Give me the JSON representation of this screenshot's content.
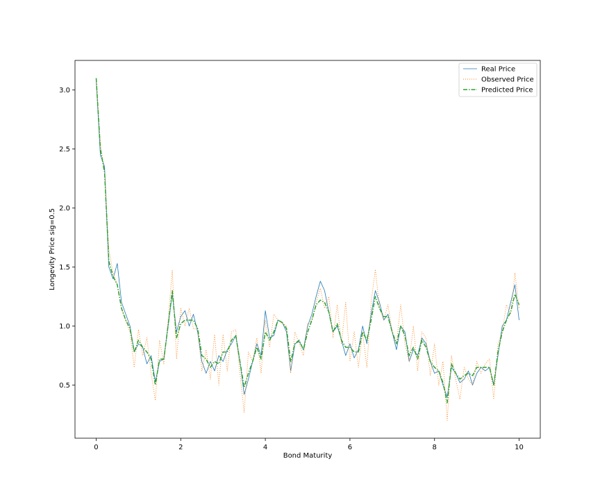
{
  "chart_data": {
    "type": "line",
    "xlabel": "Bond Maturity",
    "ylabel": "Longevity Price sig=0.5",
    "xlim": [
      -0.5,
      10.5
    ],
    "ylim": [
      0.05,
      3.25
    ],
    "xticks": [
      0,
      2,
      4,
      6,
      8,
      10
    ],
    "yticks": [
      0.5,
      1.0,
      1.5,
      2.0,
      2.5,
      3.0
    ],
    "xtick_labels": [
      "0",
      "2",
      "4",
      "6",
      "8",
      "10"
    ],
    "ytick_labels": [
      "0.5",
      "1.0",
      "1.5",
      "2.0",
      "2.5",
      "3.0"
    ],
    "grid": false,
    "legend_position": "top-right",
    "series": [
      {
        "name": "Real Price",
        "color": "#1f77b4",
        "style": "solid",
        "x": [
          0,
          0.1,
          0.2,
          0.3,
          0.4,
          0.5,
          0.6,
          0.7,
          0.8,
          0.9,
          1.0,
          1.1,
          1.2,
          1.3,
          1.4,
          1.5,
          1.6,
          1.7,
          1.8,
          1.9,
          2.0,
          2.1,
          2.2,
          2.3,
          2.4,
          2.5,
          2.6,
          2.7,
          2.8,
          2.9,
          3.0,
          3.1,
          3.2,
          3.3,
          3.4,
          3.5,
          3.6,
          3.7,
          3.8,
          3.9,
          4.0,
          4.1,
          4.2,
          4.3,
          4.4,
          4.5,
          4.6,
          4.7,
          4.8,
          4.9,
          5.0,
          5.1,
          5.2,
          5.3,
          5.4,
          5.5,
          5.6,
          5.7,
          5.8,
          5.9,
          6.0,
          6.1,
          6.2,
          6.3,
          6.4,
          6.5,
          6.6,
          6.7,
          6.8,
          6.9,
          7.0,
          7.1,
          7.2,
          7.3,
          7.4,
          7.5,
          7.6,
          7.7,
          7.8,
          7.9,
          8.0,
          8.1,
          8.2,
          8.3,
          8.4,
          8.5,
          8.6,
          8.7,
          8.8,
          8.9,
          9.0,
          9.1,
          9.2,
          9.3,
          9.4,
          9.5,
          9.6,
          9.7,
          9.8,
          9.9,
          10.0
        ],
        "y": [
          3.09,
          2.45,
          2.35,
          1.5,
          1.4,
          1.53,
          1.2,
          1.1,
          1.0,
          0.78,
          0.85,
          0.82,
          0.68,
          0.75,
          0.53,
          0.7,
          0.72,
          1.0,
          1.27,
          0.95,
          1.08,
          1.13,
          1.0,
          1.1,
          0.95,
          0.7,
          0.6,
          0.7,
          0.62,
          0.75,
          0.7,
          0.8,
          0.85,
          0.92,
          0.7,
          0.42,
          0.55,
          0.7,
          0.85,
          0.75,
          1.13,
          0.9,
          0.92,
          1.05,
          1.03,
          0.95,
          0.62,
          0.85,
          0.87,
          0.8,
          1.0,
          1.1,
          1.25,
          1.38,
          1.3,
          1.12,
          0.95,
          1.0,
          0.88,
          0.75,
          0.85,
          0.73,
          0.8,
          1.0,
          0.85,
          1.1,
          1.3,
          1.2,
          1.05,
          1.1,
          0.95,
          0.8,
          1.0,
          0.95,
          0.7,
          0.8,
          0.75,
          0.9,
          0.85,
          0.7,
          0.6,
          0.62,
          0.5,
          0.4,
          0.65,
          0.6,
          0.52,
          0.55,
          0.62,
          0.5,
          0.6,
          0.65,
          0.62,
          0.65,
          0.5,
          0.75,
          1.0,
          1.05,
          1.2,
          1.35,
          1.05
        ]
      },
      {
        "name": "Observed Price",
        "color": "#ff7f0e",
        "style": "dotted",
        "x": [
          0,
          0.1,
          0.2,
          0.3,
          0.4,
          0.5,
          0.6,
          0.7,
          0.8,
          0.9,
          1.0,
          1.1,
          1.2,
          1.3,
          1.4,
          1.5,
          1.6,
          1.7,
          1.8,
          1.9,
          2.0,
          2.1,
          2.2,
          2.3,
          2.4,
          2.5,
          2.6,
          2.7,
          2.8,
          2.9,
          3.0,
          3.1,
          3.2,
          3.3,
          3.4,
          3.5,
          3.6,
          3.7,
          3.8,
          3.9,
          4.0,
          4.1,
          4.2,
          4.3,
          4.4,
          4.5,
          4.6,
          4.7,
          4.8,
          4.9,
          5.0,
          5.1,
          5.2,
          5.3,
          5.4,
          5.5,
          5.6,
          5.7,
          5.8,
          5.9,
          6.0,
          6.1,
          6.2,
          6.3,
          6.4,
          6.5,
          6.6,
          6.7,
          6.8,
          6.9,
          7.0,
          7.1,
          7.2,
          7.3,
          7.4,
          7.5,
          7.6,
          7.7,
          7.8,
          7.9,
          8.0,
          8.1,
          8.2,
          8.3,
          8.4,
          8.5,
          8.6,
          8.7,
          8.8,
          8.9,
          9.0,
          9.1,
          9.2,
          9.3,
          9.4,
          9.5,
          9.6,
          9.7,
          9.8,
          9.9,
          10.0
        ],
        "y": [
          3.1,
          2.55,
          2.3,
          1.65,
          1.45,
          1.35,
          1.15,
          1.05,
          0.95,
          0.65,
          0.97,
          0.75,
          0.9,
          0.6,
          0.37,
          0.88,
          0.68,
          1.05,
          1.47,
          0.72,
          1.15,
          1.0,
          1.15,
          0.98,
          0.97,
          0.62,
          0.8,
          0.55,
          0.93,
          0.5,
          0.93,
          0.62,
          0.95,
          0.97,
          0.6,
          0.27,
          0.78,
          0.7,
          0.9,
          0.6,
          1.05,
          0.82,
          1.1,
          1.05,
          1.02,
          1.0,
          0.6,
          0.95,
          0.85,
          0.75,
          1.02,
          1.05,
          1.2,
          1.32,
          1.15,
          1.25,
          0.9,
          1.18,
          0.85,
          1.2,
          0.7,
          0.95,
          0.65,
          0.95,
          0.65,
          1.2,
          1.48,
          1.15,
          1.05,
          1.18,
          0.95,
          0.85,
          1.18,
          0.85,
          0.7,
          1.0,
          0.62,
          0.95,
          0.9,
          0.58,
          0.85,
          0.5,
          0.7,
          0.2,
          0.75,
          0.55,
          0.38,
          0.65,
          0.55,
          0.5,
          0.7,
          0.6,
          0.68,
          0.72,
          0.38,
          0.85,
          0.95,
          1.18,
          1.1,
          1.45,
          1.15
        ]
      },
      {
        "name": "Predicted Price",
        "color": "#2ca02c",
        "style": "dashdot",
        "x": [
          0,
          0.1,
          0.2,
          0.3,
          0.4,
          0.5,
          0.6,
          0.7,
          0.8,
          0.9,
          1.0,
          1.1,
          1.2,
          1.3,
          1.4,
          1.5,
          1.6,
          1.7,
          1.8,
          1.9,
          2.0,
          2.1,
          2.2,
          2.3,
          2.4,
          2.5,
          2.6,
          2.7,
          2.8,
          2.9,
          3.0,
          3.1,
          3.2,
          3.3,
          3.4,
          3.5,
          3.6,
          3.7,
          3.8,
          3.9,
          4.0,
          4.1,
          4.2,
          4.3,
          4.4,
          4.5,
          4.6,
          4.7,
          4.8,
          4.9,
          5.0,
          5.1,
          5.2,
          5.3,
          5.4,
          5.5,
          5.6,
          5.7,
          5.8,
          5.9,
          6.0,
          6.1,
          6.2,
          6.3,
          6.4,
          6.5,
          6.6,
          6.7,
          6.8,
          6.9,
          7.0,
          7.1,
          7.2,
          7.3,
          7.4,
          7.5,
          7.6,
          7.7,
          7.8,
          7.9,
          8.0,
          8.1,
          8.2,
          8.3,
          8.4,
          8.5,
          8.6,
          8.7,
          8.8,
          8.9,
          9.0,
          9.1,
          9.2,
          9.3,
          9.4,
          9.5,
          9.6,
          9.7,
          9.8,
          9.9,
          10.0
        ],
        "y": [
          3.1,
          2.5,
          2.3,
          1.55,
          1.42,
          1.35,
          1.15,
          1.05,
          0.98,
          0.78,
          0.88,
          0.82,
          0.78,
          0.72,
          0.5,
          0.72,
          0.72,
          1.0,
          1.3,
          0.9,
          1.02,
          1.05,
          1.05,
          1.05,
          0.98,
          0.75,
          0.72,
          0.65,
          0.7,
          0.68,
          0.78,
          0.78,
          0.88,
          0.92,
          0.7,
          0.48,
          0.6,
          0.7,
          0.82,
          0.72,
          0.95,
          0.88,
          0.95,
          1.05,
          1.03,
          0.98,
          0.7,
          0.85,
          0.88,
          0.8,
          0.95,
          1.05,
          1.18,
          1.22,
          1.2,
          1.12,
          0.95,
          1.02,
          0.88,
          0.82,
          0.82,
          0.78,
          0.78,
          0.95,
          0.88,
          1.05,
          1.25,
          1.15,
          1.08,
          1.08,
          0.95,
          0.85,
          1.0,
          0.92,
          0.75,
          0.82,
          0.72,
          0.88,
          0.82,
          0.7,
          0.65,
          0.62,
          0.52,
          0.35,
          0.68,
          0.6,
          0.55,
          0.58,
          0.6,
          0.58,
          0.65,
          0.65,
          0.65,
          0.65,
          0.5,
          0.78,
          0.95,
          1.05,
          1.12,
          1.27,
          1.18
        ]
      }
    ]
  }
}
